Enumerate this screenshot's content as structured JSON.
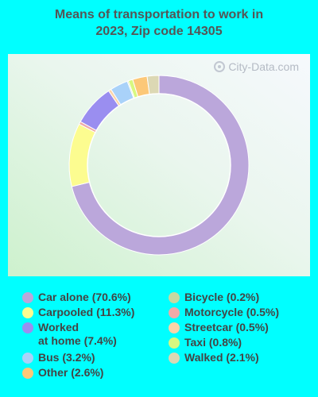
{
  "title_line1": "Means of transportation to work in",
  "title_line2": "2023, Zip code 14305",
  "watermark": "City-Data.com",
  "chart_data": {
    "type": "pie",
    "variant": "donut",
    "title": "Means of transportation to work in 2023, Zip code 14305",
    "legend_placement": "bottom",
    "categories": [
      "Car alone",
      "Carpooled",
      "Worked at home",
      "Bus",
      "Other",
      "Bicycle",
      "Motorcycle",
      "Streetcar",
      "Taxi",
      "Walked"
    ],
    "values": [
      70.6,
      11.3,
      7.4,
      3.2,
      2.6,
      0.2,
      0.5,
      0.5,
      0.8,
      2.1
    ],
    "colors": {
      "Car alone": "#bba7db",
      "Carpooled": "#fcfc90",
      "Worked at home": "#9a8ef0",
      "Bus": "#a9d2f9",
      "Other": "#fcc878",
      "Bicycle": "#c8d8a0",
      "Motorcycle": "#f0aaa8",
      "Streetcar": "#fcd4a8",
      "Taxi": "#d8f880",
      "Walked": "#dcd8b4"
    },
    "draw_order": [
      "Car alone",
      "Carpooled",
      "Motorcycle",
      "Worked at home",
      "Streetcar",
      "Bus",
      "Bicycle",
      "Taxi",
      "Other",
      "Walked"
    ]
  },
  "legend": {
    "left": [
      {
        "key": "car",
        "label": "Car alone (70.6%)",
        "color": "#bba7db"
      },
      {
        "key": "carpooled",
        "label": "Carpooled (11.3%)",
        "color": "#fcfc90"
      },
      {
        "key": "worked",
        "label": "Worked",
        "label2": "at home (7.4%)",
        "color": "#9a8ef0"
      },
      {
        "key": "bus",
        "label": "Bus (3.2%)",
        "color": "#a9d2f9"
      },
      {
        "key": "other",
        "label": "Other (2.6%)",
        "color": "#fcc878"
      }
    ],
    "right": [
      {
        "key": "bicycle",
        "label": "Bicycle (0.2%)",
        "color": "#c8d8a0"
      },
      {
        "key": "motorcycle",
        "label": "Motorcycle (0.5%)",
        "color": "#f0aaa8"
      },
      {
        "key": "streetcar",
        "label": "Streetcar (0.5%)",
        "color": "#fcd4a8"
      },
      {
        "key": "taxi",
        "label": "Taxi (0.8%)",
        "color": "#d8f880"
      },
      {
        "key": "walked",
        "label": "Walked (2.1%)",
        "color": "#dcd8b4"
      }
    ]
  }
}
